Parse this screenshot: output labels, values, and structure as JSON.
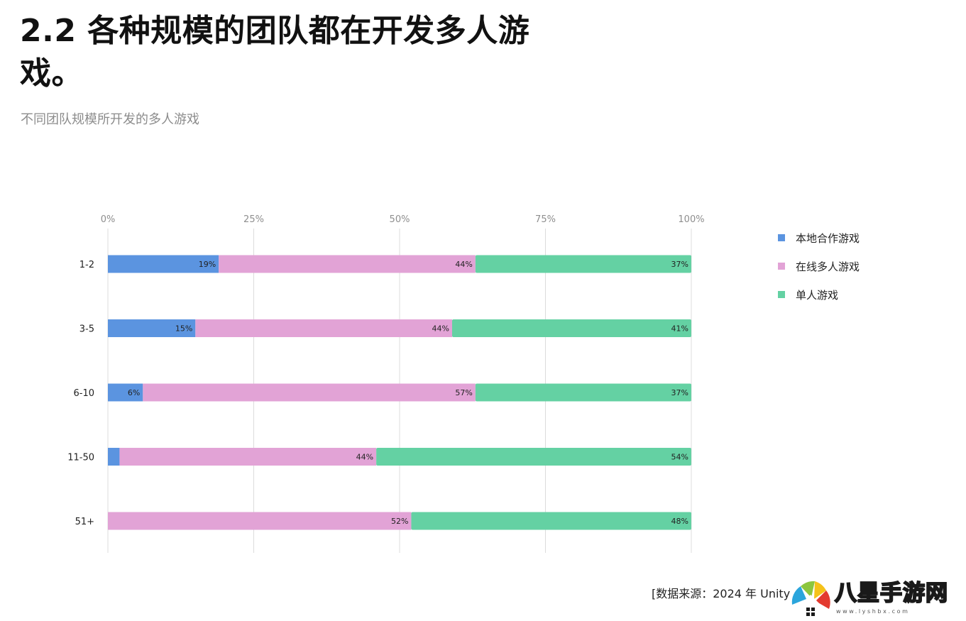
{
  "title": "2.2 各种规模的团队都在开发多人游戏。",
  "subtitle": "不同团队规模所开发的多人游戏",
  "source": "[数据来源：2024 年 Unity",
  "watermark": {
    "text": "八星手游网",
    "url": "www.lyshbx.com"
  },
  "colors": {
    "local_coop": "#5b94e0",
    "online_multiplayer": "#e2a3d6",
    "single_player": "#64d1a3"
  },
  "chart_data": {
    "type": "bar",
    "orientation": "horizontal",
    "stacked": "percent",
    "title": "",
    "xlabel": "",
    "ylabel": "",
    "xlim": [
      0,
      100
    ],
    "x_ticks": [
      "0%",
      "25%",
      "50%",
      "75%",
      "100%"
    ],
    "grid": true,
    "legend_position": "right",
    "categories": [
      "1-2",
      "3-5",
      "6-10",
      "11-50",
      "51+"
    ],
    "series": [
      {
        "name": "本地合作游戏",
        "color": "#5b94e0",
        "values": [
          19,
          15,
          6,
          2,
          0
        ],
        "labels": [
          "19%",
          "15%",
          "6%",
          "2%",
          "0%"
        ]
      },
      {
        "name": "在线多人游戏",
        "color": "#e2a3d6",
        "values": [
          44,
          44,
          57,
          44,
          52
        ],
        "labels": [
          "44%",
          "44%",
          "57%",
          "44%",
          "52%"
        ]
      },
      {
        "name": "单人游戏",
        "color": "#64d1a3",
        "values": [
          37,
          41,
          37,
          54,
          48
        ],
        "labels": [
          "37%",
          "41%",
          "37%",
          "54%",
          "48%"
        ]
      }
    ]
  }
}
